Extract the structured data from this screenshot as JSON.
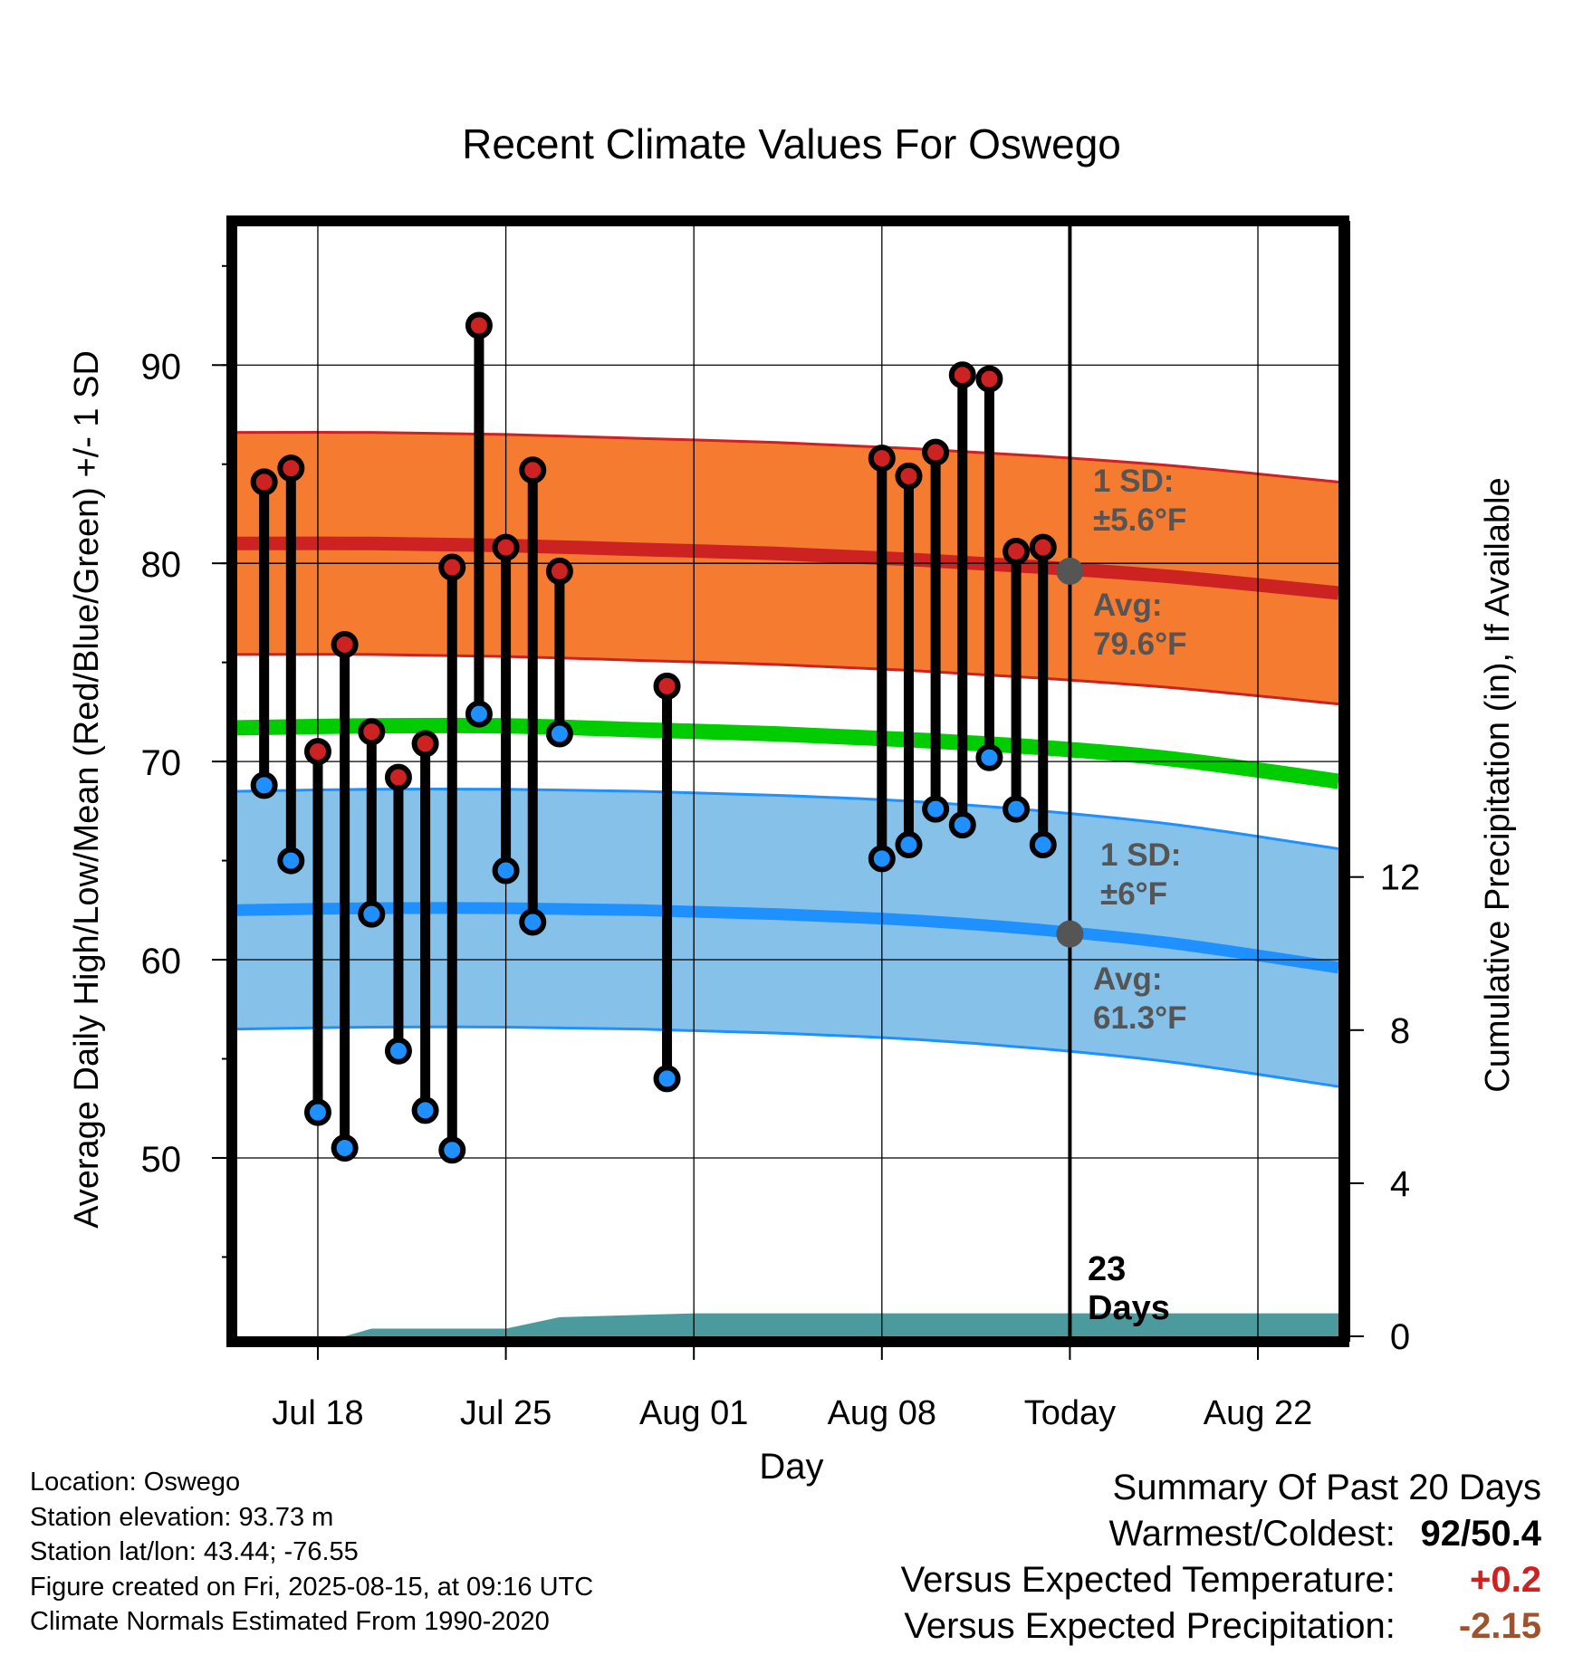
{
  "chart_data": {
    "type": "line",
    "title": "Recent Climate Values For Oswego",
    "xlabel": "Day",
    "ylabel_left": "Average Daily High/Low/Mean (Red/Blue/Green) +/- 1 SD",
    "ylabel_right": "Cumulative Precipitation (in), If Available",
    "ylim_left": [
      41,
      97
    ],
    "ylim_right": [
      0,
      29
    ],
    "grid": true,
    "x_ticks": [
      "Jul 18",
      "Jul 25",
      "Aug 01",
      "Aug 08",
      "Today",
      "Aug 22"
    ],
    "x_tick_days": [
      "2025-07-18",
      "2025-07-25",
      "2025-08-01",
      "2025-08-08",
      "2025-08-15",
      "2025-08-22"
    ],
    "x_range": [
      "2025-07-15",
      "2025-08-25"
    ],
    "today": "2025-08-15",
    "left_ticks": [
      50,
      60,
      70,
      80,
      90
    ],
    "right_ticks": [
      0,
      4,
      8,
      12
    ],
    "observations": [
      {
        "date": "2025-07-16",
        "high": 84.1,
        "low": 68.8
      },
      {
        "date": "2025-07-17",
        "high": 84.8,
        "low": 65.0
      },
      {
        "date": "2025-07-18",
        "high": 70.5,
        "low": 52.3
      },
      {
        "date": "2025-07-19",
        "high": 75.9,
        "low": 50.5
      },
      {
        "date": "2025-07-20",
        "high": 71.5,
        "low": 62.3
      },
      {
        "date": "2025-07-21",
        "high": 69.2,
        "low": 55.4
      },
      {
        "date": "2025-07-22",
        "high": 70.9,
        "low": 52.4
      },
      {
        "date": "2025-07-23",
        "high": 79.8,
        "low": 50.4
      },
      {
        "date": "2025-07-24",
        "high": 92.0,
        "low": 72.4
      },
      {
        "date": "2025-07-25",
        "high": 80.8,
        "low": 64.5
      },
      {
        "date": "2025-07-26",
        "high": 84.7,
        "low": 61.9
      },
      {
        "date": "2025-07-27",
        "high": 79.6,
        "low": 71.4
      },
      {
        "date": "2025-07-31",
        "high": 73.8,
        "low": 54.0
      },
      {
        "date": "2025-08-08",
        "high": 85.3,
        "low": 65.1
      },
      {
        "date": "2025-08-09",
        "high": 84.4,
        "low": 65.8
      },
      {
        "date": "2025-08-10",
        "high": 85.6,
        "low": 67.6
      },
      {
        "date": "2025-08-11",
        "high": 89.5,
        "low": 66.8
      },
      {
        "date": "2025-08-12",
        "high": 89.3,
        "low": 70.2
      },
      {
        "date": "2025-08-13",
        "high": 80.6,
        "low": 67.6
      },
      {
        "date": "2025-08-14",
        "high": 80.8,
        "low": 65.8
      }
    ],
    "normals": {
      "dates": [
        "2025-07-15",
        "2025-07-20",
        "2025-07-25",
        "2025-07-30",
        "2025-08-04",
        "2025-08-09",
        "2025-08-14",
        "2025-08-19",
        "2025-08-25"
      ],
      "high_avg": [
        81.0,
        81.0,
        80.9,
        80.7,
        80.5,
        80.2,
        79.8,
        79.3,
        78.5
      ],
      "high_sd": 5.6,
      "low_avg": [
        62.5,
        62.6,
        62.6,
        62.5,
        62.3,
        62.0,
        61.5,
        60.8,
        59.6
      ],
      "low_sd": 6.0,
      "mean_avg": [
        71.7,
        71.8,
        71.8,
        71.6,
        71.4,
        71.1,
        70.7,
        70.1,
        69.0
      ]
    },
    "precipitation": {
      "dates": [
        "2025-07-15",
        "2025-07-19",
        "2025-07-20",
        "2025-07-25",
        "2025-07-27",
        "2025-08-01",
        "2025-08-25"
      ],
      "cumulative": [
        0,
        0,
        0.2,
        0.2,
        0.5,
        0.6,
        0.6
      ]
    },
    "annotations": {
      "high_sd_label": [
        "1 SD:",
        "±5.6°F"
      ],
      "high_avg_label": [
        "Avg:",
        "79.6°F"
      ],
      "low_sd_label": [
        "1 SD:",
        "±6°F"
      ],
      "low_avg_label": [
        "Avg:",
        "61.3°F"
      ],
      "today_high_avg": 79.6,
      "today_low_avg": 61.3,
      "days_label": [
        "23",
        "Days"
      ]
    },
    "colors": {
      "high": "#cc2222",
      "high_band": "#f47b30",
      "low": "#1e90ff",
      "low_band": "#85c1e9",
      "mean": "#00cc00",
      "precip": "#4a9a9e",
      "annotation": "#555555"
    }
  },
  "location_info": [
    "Location: Oswego",
    "Station elevation: 93.73 m",
    "Station lat/lon: 43.44; -76.55",
    "Figure created on Fri, 2025-08-15, at 09:16 UTC",
    "Climate Normals Estimated From 1990-2020"
  ],
  "summary": {
    "title": "Summary Of Past 20 Days",
    "warmest_coldest_label": "Warmest/Coldest:",
    "warmest_coldest_value": "92/50.4",
    "temp_label": "Versus Expected Temperature:",
    "temp_value": "+0.2",
    "temp_color": "#cc2222",
    "precip_label": "Versus Expected Precipitation:",
    "precip_value": "-2.15",
    "precip_color": "#a0522d"
  }
}
